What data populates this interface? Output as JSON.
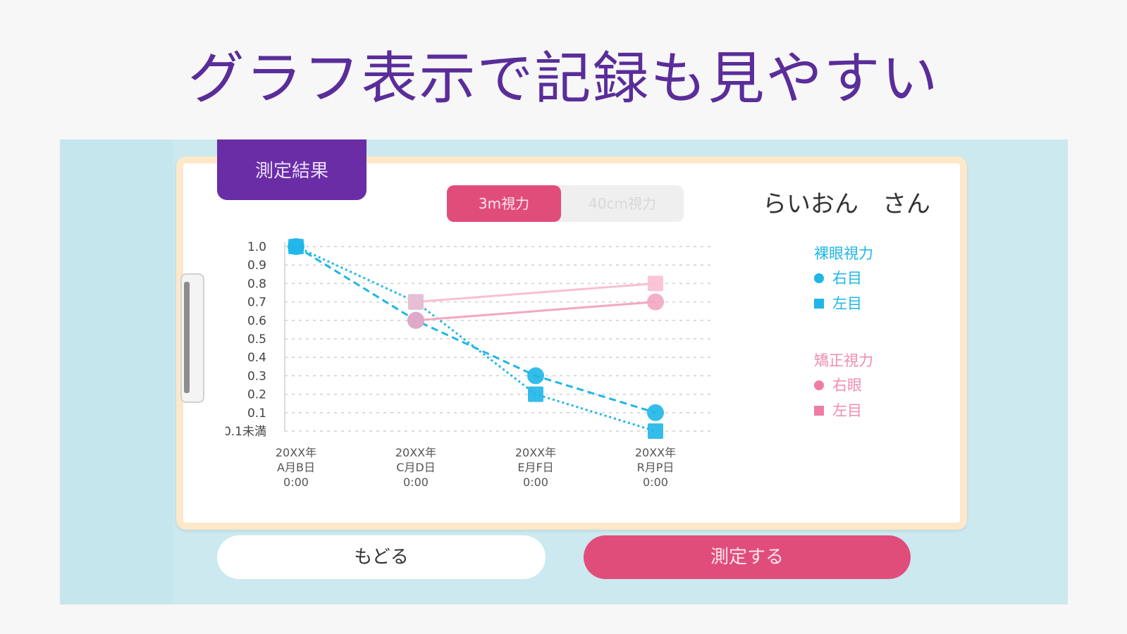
{
  "headline": "グラフ表示で記録も見やすい",
  "result_tab": "測定結果",
  "mode_toggle": {
    "active": "3m視力",
    "inactive": "40cm視力"
  },
  "patient_name": "らいおん　さん",
  "legend": {
    "naked": {
      "title": "裸眼視力",
      "right": "右目",
      "left": "左目"
    },
    "corrected": {
      "title": "矯正視力",
      "right": "右眼",
      "left": "左目"
    }
  },
  "buttons": {
    "back": "もどる",
    "measure": "測定する"
  },
  "colors": {
    "accent_pink": "#e14d7b",
    "purple": "#6a2da6",
    "blue": "#1fb6e8",
    "light_pink": "#f3a6c3"
  },
  "chart_data": {
    "type": "line",
    "categories": [
      [
        "20XX年",
        "A月B日",
        "0:00"
      ],
      [
        "20XX年",
        "C月D日",
        "0:00"
      ],
      [
        "20XX年",
        "E月F日",
        "0:00"
      ],
      [
        "20XX年",
        "R月P日",
        "0:00"
      ]
    ],
    "y_ticks": [
      "1.0",
      "0.9",
      "0.8",
      "0.7",
      "0.6",
      "0.5",
      "0.4",
      "0.3",
      "0.2",
      "0.1",
      "0.1未満"
    ],
    "ylim": [
      0,
      1.0
    ],
    "grid": true,
    "series": [
      {
        "name": "裸眼視力 右目",
        "marker": "circle",
        "style": "dashed",
        "color": "#1fb6e8",
        "values": [
          1.0,
          0.6,
          0.3,
          0.1
        ]
      },
      {
        "name": "裸眼視力 左目",
        "marker": "square",
        "style": "dotted",
        "color": "#1fb6e8",
        "values": [
          1.0,
          0.7,
          0.2,
          0.0
        ]
      },
      {
        "name": "矯正視力 右眼",
        "marker": "circle",
        "style": "solid",
        "color": "#f3a6c3",
        "values": [
          null,
          0.6,
          null,
          0.7
        ]
      },
      {
        "name": "矯正視力 左目",
        "marker": "square",
        "style": "solid",
        "color": "#f9bfd3",
        "values": [
          null,
          0.7,
          null,
          0.8
        ]
      }
    ]
  }
}
